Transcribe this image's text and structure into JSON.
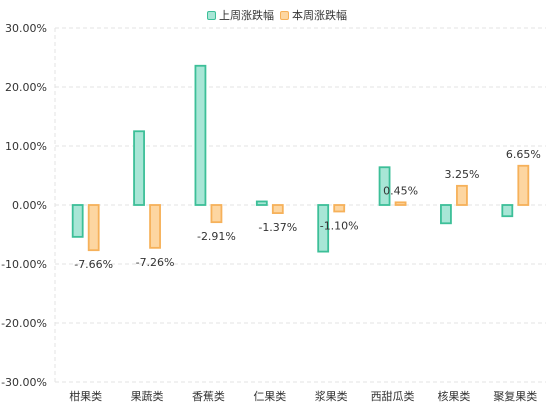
{
  "chart_data": {
    "type": "bar",
    "categories": [
      "柑果类",
      "果蔬类",
      "香蕉类",
      "仁果类",
      "浆果类",
      "西甜瓜类",
      "核果类",
      "聚复果类"
    ],
    "series": [
      {
        "name": "上周涨跌幅",
        "values": [
          -5.4,
          12.5,
          23.6,
          0.6,
          -7.9,
          6.4,
          -3.1,
          -1.9
        ],
        "fill": "#a8e6d6",
        "stroke": "#3cbf98"
      },
      {
        "name": "本周涨跌幅",
        "values": [
          -7.66,
          -7.26,
          -2.91,
          -1.37,
          -1.1,
          0.45,
          3.25,
          6.65
        ],
        "fill": "#fdd6a1",
        "stroke": "#f6b15a"
      }
    ],
    "data_labels": [
      null,
      [
        "-7.66%",
        "-7.26%",
        "-2.91%",
        "-1.37%",
        "-1.10%",
        "0.45%",
        "3.25%",
        "6.65%"
      ]
    ],
    "y_ticks": [
      "30.00%",
      "20.00%",
      "10.00%",
      "0.00%",
      "-10.00%",
      "-20.00%",
      "-30.00%"
    ],
    "ylim": [
      -30,
      30
    ],
    "grid": true,
    "legend_position": "top-center",
    "title": "",
    "xlabel": "",
    "ylabel": ""
  }
}
